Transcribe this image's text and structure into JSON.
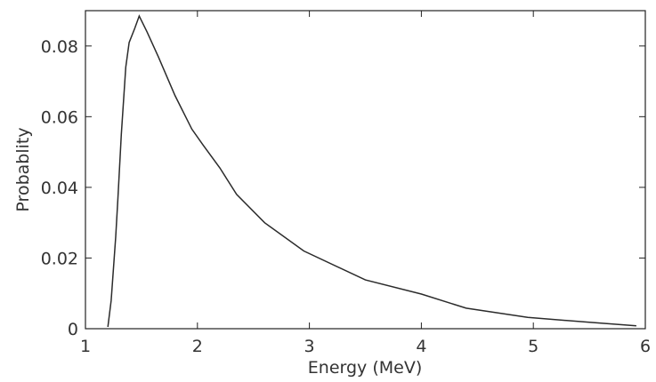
{
  "chart_data": {
    "type": "line",
    "title": "",
    "xlabel": "Energy (MeV)",
    "ylabel": "Probablity",
    "xlim": [
      1,
      6
    ],
    "ylim": [
      0,
      0.09
    ],
    "xticks": [
      1,
      2,
      3,
      4,
      5,
      6
    ],
    "xtick_labels": [
      "1",
      "2",
      "3",
      "4",
      "5",
      "6"
    ],
    "yticks": [
      0,
      0.02,
      0.04,
      0.06,
      0.08
    ],
    "ytick_labels": [
      "0",
      "0.02",
      "0.04",
      "0.06",
      "0.08"
    ],
    "grid": false,
    "line_color": "#2b2b2b",
    "series": [
      {
        "x": [
          1.2,
          1.23,
          1.27,
          1.29,
          1.32,
          1.36,
          1.39,
          1.44,
          1.48,
          1.55,
          1.65,
          1.8,
          1.95,
          2.05,
          2.2,
          2.35,
          2.6,
          2.95,
          3.5,
          4.0,
          4.4,
          4.95,
          5.5,
          5.92
        ],
        "y": [
          0.0005,
          0.008,
          0.026,
          0.037,
          0.055,
          0.074,
          0.081,
          0.085,
          0.0885,
          0.084,
          0.077,
          0.066,
          0.0565,
          0.052,
          0.0455,
          0.038,
          0.03,
          0.022,
          0.0138,
          0.0098,
          0.0058,
          0.0032,
          0.0018,
          0.0008
        ]
      }
    ]
  }
}
